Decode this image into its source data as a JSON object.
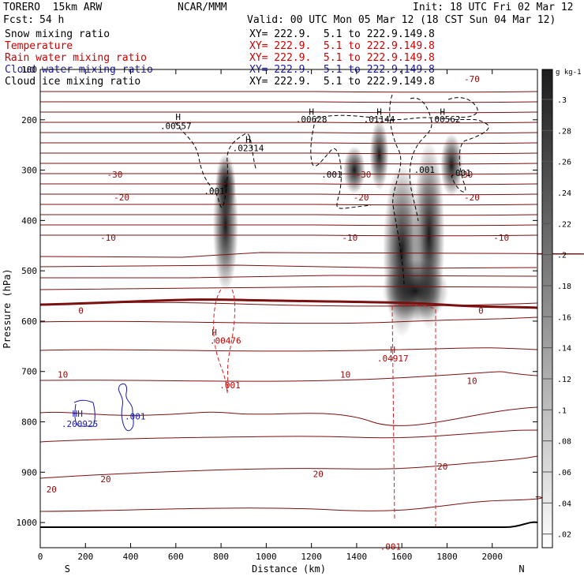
{
  "header": {
    "model": "TORERO  15km ARW",
    "forecast_label": "Fcst:",
    "forecast_hours": "54 h",
    "center": "NCAR/MMM",
    "init": "Init: 18 UTC Fri 02 Mar 12",
    "valid": "Valid: 00 UTC Mon 05 Mar 12 (18 CST Sun 04 Mar 12)"
  },
  "fields": [
    {
      "name": "Snow mixing ratio",
      "xy": "XY= 222.9.  5.1 to 222.9.149.8",
      "color": "#000000"
    },
    {
      "name": "Temperature",
      "xy": "XY= 222.9.  5.1 to 222.9.149.8",
      "color": "#cc0000"
    },
    {
      "name": "Rain water mixing ratio",
      "xy": "XY= 222.9.  5.1 to 222.9.149.8",
      "color": "#cc0000"
    },
    {
      "name": "Cloud water mixing ratio",
      "xy": "XY= 222.9.  5.1 to 222.9.149.8",
      "color": "#1a1aa6"
    },
    {
      "name": "Cloud ice mixing ratio",
      "xy": "XY= 222.9.  5.1 to 222.9.149.8",
      "color": "#000000"
    }
  ],
  "chart_data": {
    "type": "cross-section contour",
    "xlabel": "Distance (km)",
    "ylabel": "Pressure (hPa)",
    "xlim": [
      0,
      2200
    ],
    "ylim": [
      1050,
      100
    ],
    "x_ticks": [
      0,
      200,
      400,
      600,
      800,
      1000,
      1200,
      1400,
      1600,
      1800,
      2000
    ],
    "y_ticks": [
      100,
      200,
      300,
      400,
      500,
      600,
      700,
      800,
      900,
      1000
    ],
    "left_end": "S",
    "right_end": "N",
    "colorbar": {
      "unit": "g kg-1",
      "labels": [
        ".3",
        ".28",
        ".26",
        ".24",
        ".22",
        ".2",
        ".18",
        ".16",
        ".14",
        ".12",
        ".1",
        ".08",
        ".06",
        ".04",
        ".02"
      ]
    },
    "temperature_labels": [
      {
        "text": "-70",
        "x": 1910,
        "p": 125
      },
      {
        "text": "-30",
        "x": 330,
        "p": 315
      },
      {
        "text": "-30",
        "x": 1430,
        "p": 315
      },
      {
        "text": "-30",
        "x": 1880,
        "p": 315
      },
      {
        "text": "-20",
        "x": 360,
        "p": 360
      },
      {
        "text": "-20",
        "x": 1420,
        "p": 360
      },
      {
        "text": "-20",
        "x": 1910,
        "p": 360
      },
      {
        "text": "-10",
        "x": 300,
        "p": 440
      },
      {
        "text": "-10",
        "x": 1370,
        "p": 440
      },
      {
        "text": "-10",
        "x": 2040,
        "p": 440
      },
      {
        "text": "0",
        "x": 180,
        "p": 585
      },
      {
        "text": "0",
        "x": 1950,
        "p": 585
      },
      {
        "text": "10",
        "x": 100,
        "p": 712
      },
      {
        "text": "10",
        "x": 1350,
        "p": 712
      },
      {
        "text": "10",
        "x": 1910,
        "p": 725
      },
      {
        "text": "20",
        "x": 50,
        "p": 940
      },
      {
        "text": "20",
        "x": 290,
        "p": 920
      },
      {
        "text": "20",
        "x": 1230,
        "p": 910
      },
      {
        "text": "20",
        "x": 1780,
        "p": 895
      }
    ],
    "snow_labels": [
      {
        "text": "H",
        "x": 610,
        "p": 200
      },
      {
        "text": ".00557",
        "x": 600,
        "p": 218
      },
      {
        "text": "H",
        "x": 920,
        "p": 245
      },
      {
        "text": ".02314",
        "x": 920,
        "p": 262
      },
      {
        "text": ".001",
        "x": 770,
        "p": 348
      },
      {
        "text": "H",
        "x": 1200,
        "p": 190
      },
      {
        "text": ".00628",
        "x": 1200,
        "p": 205
      },
      {
        "text": "H",
        "x": 1500,
        "p": 190
      },
      {
        "text": ".01144",
        "x": 1500,
        "p": 205
      },
      {
        "text": ".001",
        "x": 1290,
        "p": 315
      },
      {
        "text": ".001",
        "x": 1700,
        "p": 305
      },
      {
        "text": "H",
        "x": 1780,
        "p": 190
      },
      {
        "text": ".00562",
        "x": 1790,
        "p": 205
      },
      {
        "text": ".001",
        "x": 1860,
        "p": 312
      }
    ],
    "rain_labels": [
      {
        "text": "H",
        "x": 770,
        "p": 628
      },
      {
        "text": ".00476",
        "x": 820,
        "p": 645
      },
      {
        "text": ".001",
        "x": 840,
        "p": 733
      },
      {
        "text": "H",
        "x": 1560,
        "p": 663
      },
      {
        "text": ".04917",
        "x": 1560,
        "p": 680
      },
      {
        "text": ".001",
        "x": 1550,
        "p": 1054
      }
    ],
    "cloud_water_labels": [
      {
        "text": "HH",
        "x": 165,
        "p": 790
      },
      {
        "text": ".200925",
        "x": 175,
        "p": 810
      },
      {
        "text": ".001",
        "x": 420,
        "p": 795
      }
    ]
  }
}
